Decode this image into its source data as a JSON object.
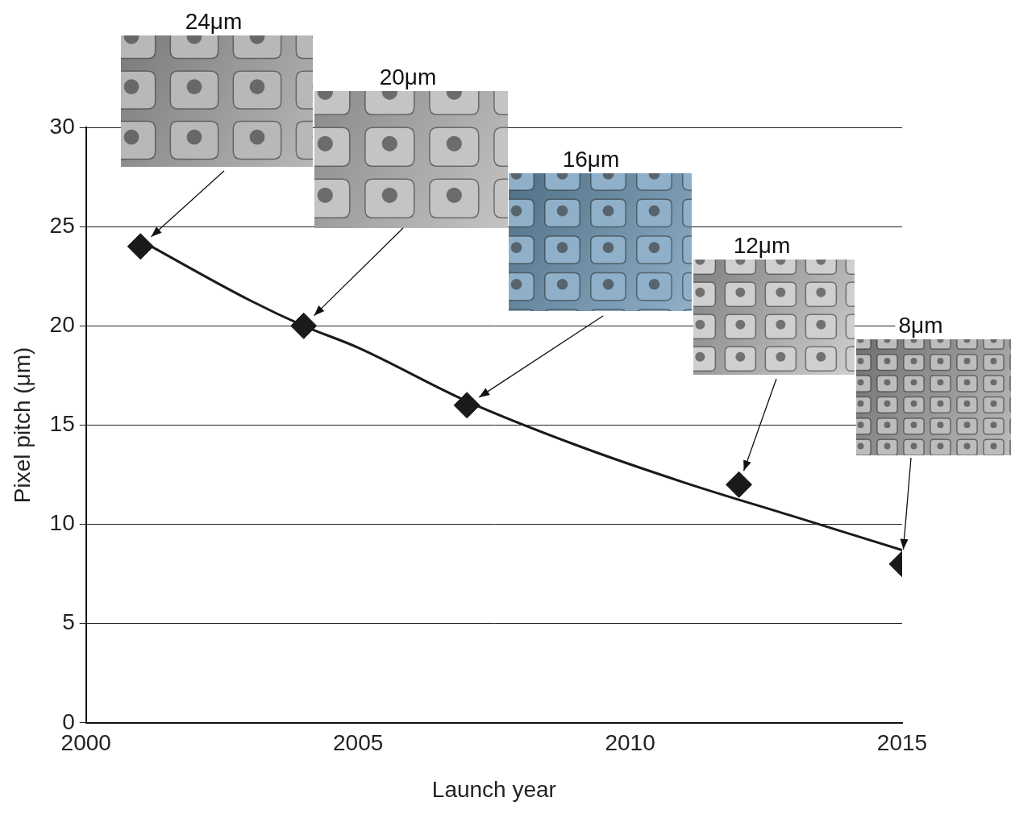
{
  "chart_data": {
    "type": "scatter",
    "x_label": "Launch year",
    "y_label": "Pixel pitch (μm)",
    "xlim": [
      2000,
      2015
    ],
    "xticks": [
      2000,
      2005,
      2010,
      2015
    ],
    "ylim": [
      0,
      30
    ],
    "yticks": [
      0,
      5,
      10,
      15,
      20,
      25,
      30
    ],
    "grid": true,
    "series": [
      {
        "x": [
          2001,
          2004,
          2007,
          2012,
          2015
        ],
        "values": [
          24,
          20,
          16,
          12,
          8
        ],
        "color": "#1a1a1a",
        "marker": "diamond",
        "line_style": "none"
      },
      {
        "type": "line",
        "x": [
          2001,
          2003,
          2004,
          2005,
          2007,
          2009,
          2011,
          2013,
          2015
        ],
        "values": [
          24.3,
          21.3,
          20.0,
          18.9,
          16.2,
          14.0,
          12.1,
          10.4,
          8.7
        ],
        "color": "#1a1a1a",
        "marker": "none",
        "line_style": "solid"
      }
    ],
    "annotations": [
      {
        "text": "24μm",
        "x": 2001,
        "y": 24
      },
      {
        "text": "20μm",
        "x": 2004,
        "y": 20
      },
      {
        "text": "16μm",
        "x": 2007,
        "y": 16
      },
      {
        "text": "12μm",
        "x": 2012,
        "y": 12
      },
      {
        "text": "8μm",
        "x": 2015,
        "y": 8
      }
    ]
  }
}
